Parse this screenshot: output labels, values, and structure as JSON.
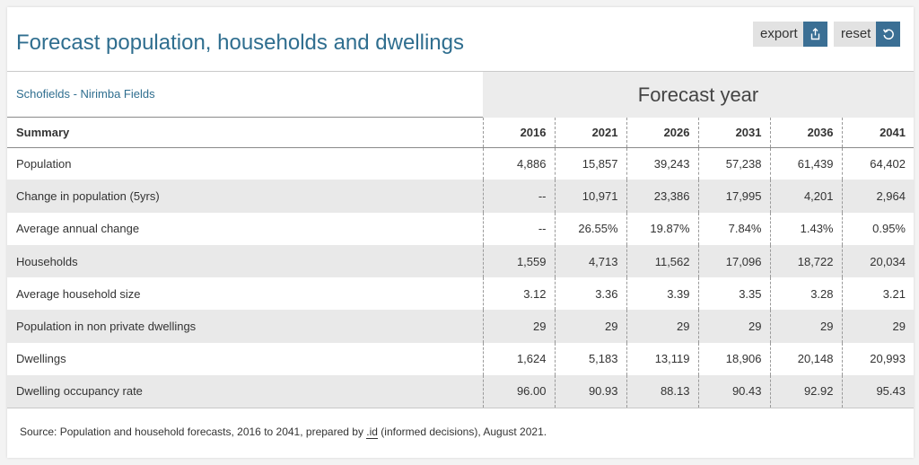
{
  "header": {
    "title": "Forecast population, households and dwellings",
    "export_label": "export",
    "reset_label": "reset",
    "export_icon": "share-icon",
    "reset_icon": "refresh-icon"
  },
  "colors": {
    "title": "#2f6e8f",
    "button_icon_bg": "#3b6f94",
    "button_label_bg": "#e2e2e2",
    "alt_row": "#e9e9e9",
    "forecast_band": "#ececec"
  },
  "area": {
    "name": "Schofields - Nirimba Fields"
  },
  "forecast_heading": "Forecast year",
  "table": {
    "label_header": "Summary",
    "years": [
      "2016",
      "2021",
      "2026",
      "2031",
      "2036",
      "2041"
    ],
    "rows": [
      {
        "label": "Population",
        "values": [
          "4,886",
          "15,857",
          "39,243",
          "57,238",
          "61,439",
          "64,402"
        ]
      },
      {
        "label": "Change in population (5yrs)",
        "values": [
          "--",
          "10,971",
          "23,386",
          "17,995",
          "4,201",
          "2,964"
        ]
      },
      {
        "label": "Average annual change",
        "values": [
          "--",
          "26.55%",
          "19.87%",
          "7.84%",
          "1.43%",
          "0.95%"
        ]
      },
      {
        "label": "Households",
        "values": [
          "1,559",
          "4,713",
          "11,562",
          "17,096",
          "18,722",
          "20,034"
        ]
      },
      {
        "label": "Average household size",
        "values": [
          "3.12",
          "3.36",
          "3.39",
          "3.35",
          "3.28",
          "3.21"
        ]
      },
      {
        "label": "Population in non private dwellings",
        "values": [
          "29",
          "29",
          "29",
          "29",
          "29",
          "29"
        ]
      },
      {
        "label": "Dwellings",
        "values": [
          "1,624",
          "5,183",
          "13,119",
          "18,906",
          "20,148",
          "20,993"
        ]
      },
      {
        "label": "Dwelling occupancy rate",
        "values": [
          "96.00",
          "90.93",
          "88.13",
          "90.43",
          "92.92",
          "95.43"
        ]
      }
    ]
  },
  "source": {
    "prefix": "Source: Population and household forecasts, 2016 to 2041, prepared by ",
    "link": ".id",
    "suffix": " (informed decisions), August 2021."
  }
}
